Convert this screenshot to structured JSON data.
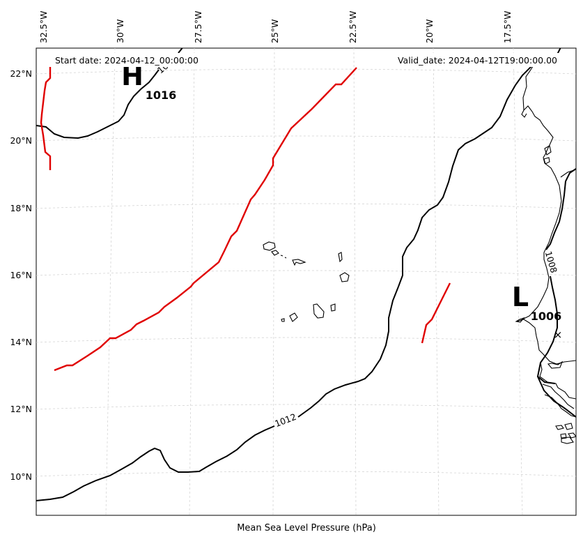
{
  "map": {
    "start_date": "Start date: 2024-04-12_00:00:00",
    "valid_date": "Valid_date: 2024-04-12T19:00:00.00",
    "caption": "Mean Sea Level Pressure (hPa)",
    "longitude_ticks": [
      "32.5°W",
      "30°W",
      "27.5°W",
      "25°W",
      "22.5°W",
      "20°W",
      "17.5°W"
    ],
    "latitude_ticks": [
      "22°N",
      "20°N",
      "18°N",
      "16°N",
      "14°N",
      "12°N",
      "10°N"
    ],
    "isobar_labels": [
      "1012",
      "1008",
      "10"
    ],
    "high": {
      "letter": "H",
      "value": "1016"
    },
    "low": {
      "letter": "L",
      "value": "1006"
    },
    "low_marker": "×",
    "colors": {
      "isobar": "#000000",
      "front": "#e00000",
      "grid": "#d4d4d4"
    }
  }
}
